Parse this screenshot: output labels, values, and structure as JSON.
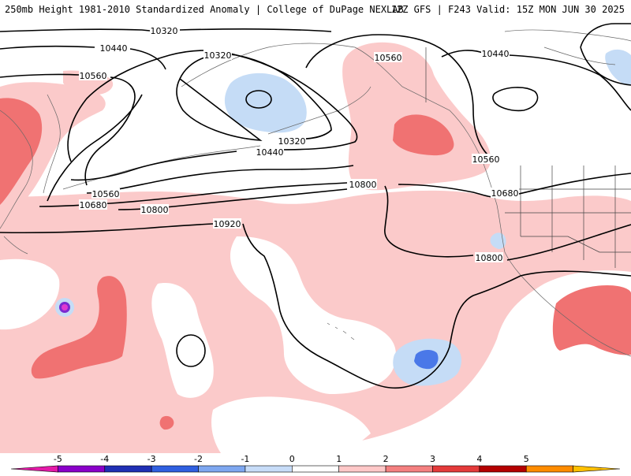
{
  "header": {
    "left": "250mb Height 1981-2010 Standardized Anomaly | College of DuPage NEXLAB",
    "right": "12Z GFS | F243 Valid: 15Z MON JUN 30 2025"
  },
  "contour_labels": {
    "l10320_top": "10320",
    "l10440_nw": "10440",
    "l10560_nw": "10560",
    "l10320_ak": "10320",
    "l10560_ak": "10560",
    "l10440_ne": "10440",
    "l10320_bs": "10320",
    "l10440_bs": "10440",
    "l10560_w": "10560",
    "l10680_w": "10680",
    "l10800_w": "10800",
    "l10800_mid": "10800",
    "l10920_w": "10920",
    "l10560_e": "10560",
    "l10680_e": "10680",
    "l10800_e": "10800"
  },
  "colorbar": {
    "ticks": [
      "-5",
      "-4",
      "-3",
      "-2",
      "-1",
      "0",
      "1",
      "2",
      "3",
      "4",
      "5"
    ],
    "colors": [
      "#e41aa8",
      "#8a00c9",
      "#1f2fb4",
      "#2f5fe0",
      "#7ea7f0",
      "#c7dcf8",
      "#ffffff",
      "#ffc8c8",
      "#f48080",
      "#e43a3a",
      "#b40000",
      "#ff8c00",
      "#ffc000"
    ],
    "palette": {
      "pos1": "#fbcaca",
      "pos2": "#f07272",
      "pos3": "#e53c3c",
      "neg1": "#c5dcf6",
      "neg2": "#4a78e8",
      "neg3": "#7a2ad0",
      "neg4": "#e03ad0"
    }
  }
}
